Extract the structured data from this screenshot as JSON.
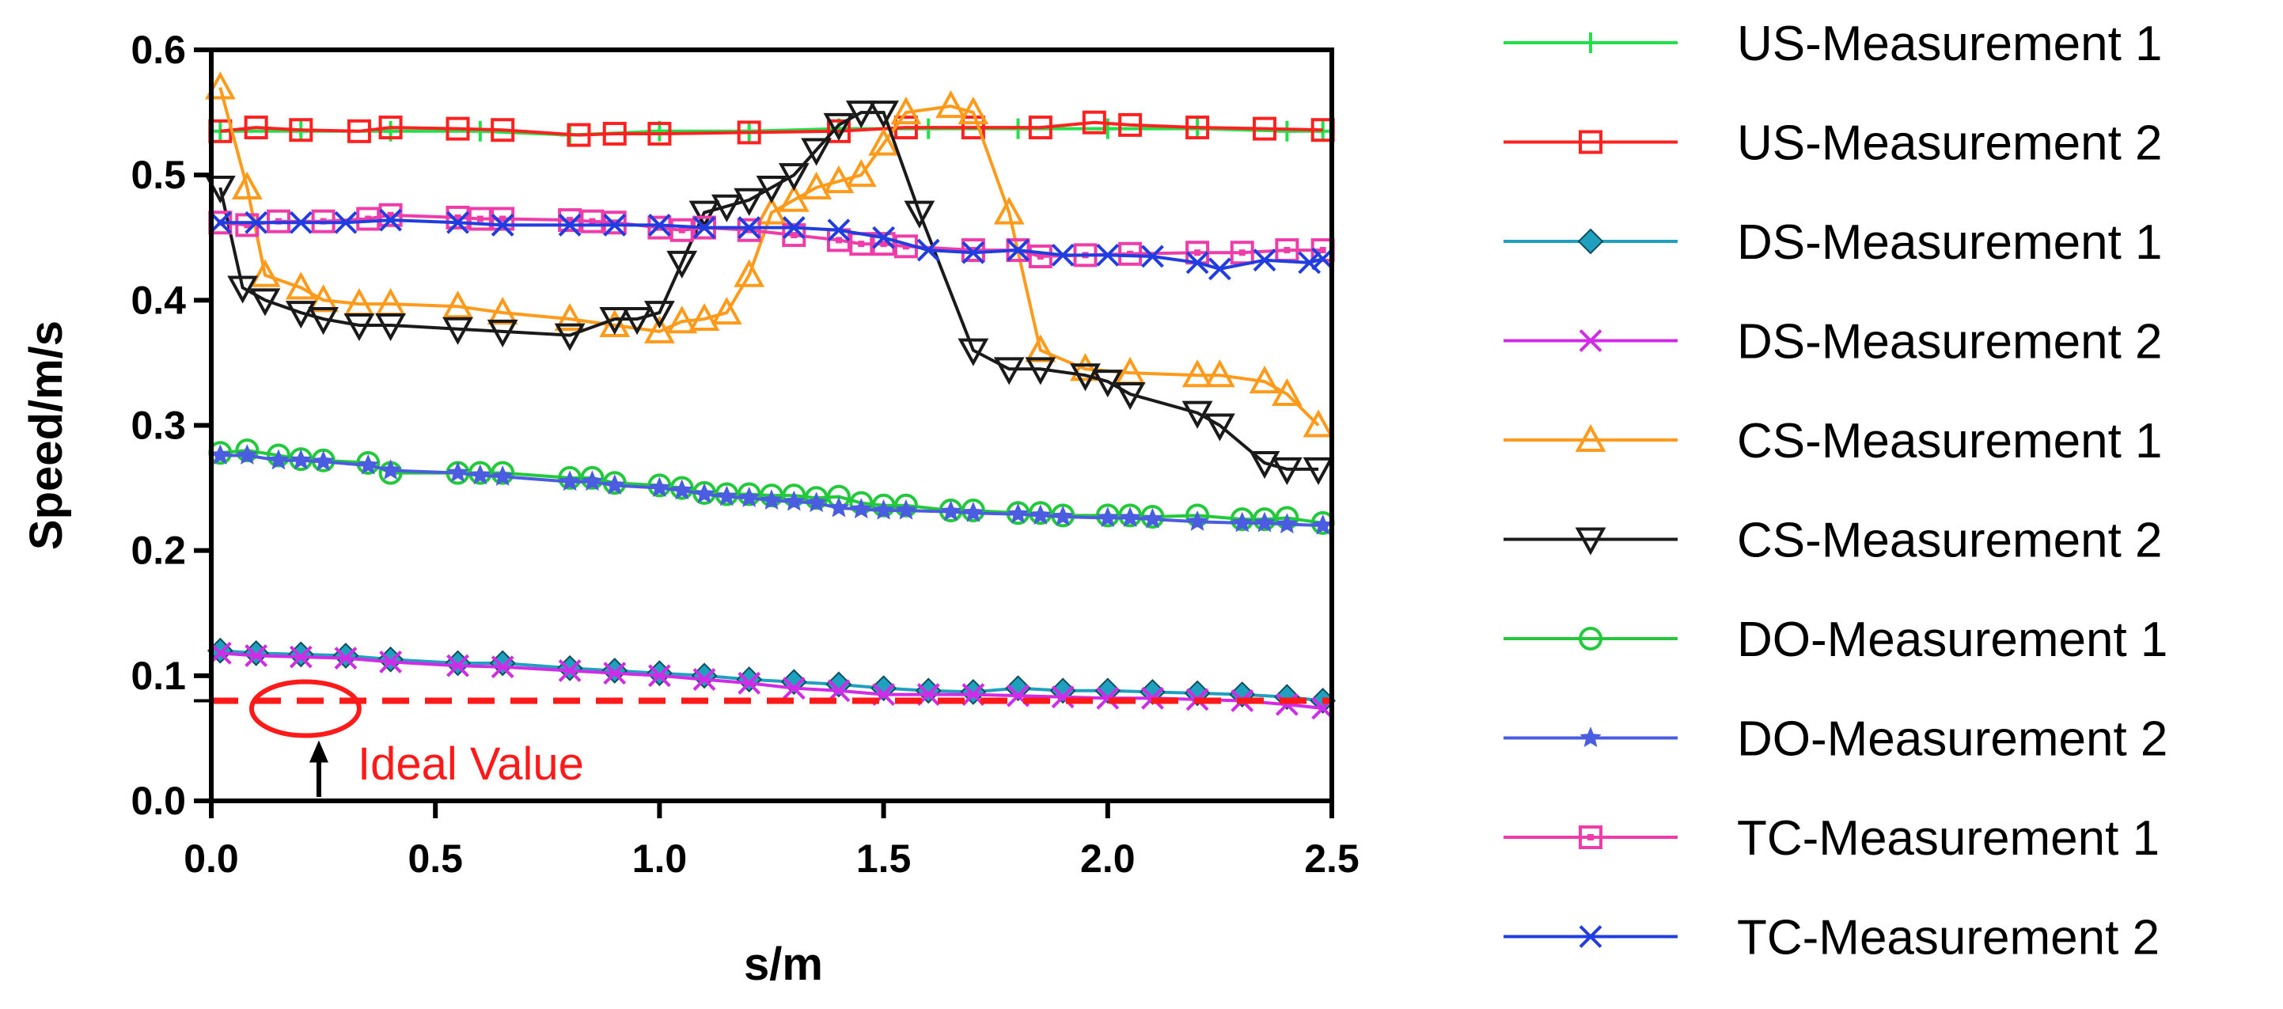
{
  "chart_data": {
    "type": "line",
    "title": "",
    "xlabel": "s/m",
    "ylabel": "Speed/m/s",
    "xlim": [
      0,
      2.5
    ],
    "ylim": [
      0,
      0.6
    ],
    "x_ticks": [
      "0.0",
      "0.5",
      "1.0",
      "1.5",
      "2.0",
      "2.5"
    ],
    "y_ticks": [
      "0.0",
      "0.1",
      "0.2",
      "0.3",
      "0.4",
      "0.5",
      "0.6"
    ],
    "grid": false,
    "legend_position": "right",
    "ideal_value": 0.08,
    "annotation": {
      "text": "Ideal Value",
      "color": "#ff1a1a"
    },
    "series": [
      {
        "name": "US-Measurement 1",
        "color": "#22e04a",
        "marker": "plus",
        "x": [
          0.02,
          0.2,
          0.4,
          0.6,
          0.8,
          1.0,
          1.2,
          1.4,
          1.6,
          1.8,
          2.0,
          2.2,
          2.4,
          2.48
        ],
        "y": [
          0.535,
          0.535,
          0.535,
          0.535,
          0.532,
          0.535,
          0.535,
          0.537,
          0.537,
          0.537,
          0.537,
          0.537,
          0.535,
          0.535
        ]
      },
      {
        "name": "US-Measurement 2",
        "color": "#ff2020",
        "marker": "square",
        "x": [
          0.02,
          0.1,
          0.2,
          0.33,
          0.4,
          0.55,
          0.65,
          0.82,
          0.9,
          1.0,
          1.2,
          1.4,
          1.55,
          1.7,
          1.85,
          1.97,
          2.05,
          2.2,
          2.35,
          2.48
        ],
        "y": [
          0.535,
          0.538,
          0.536,
          0.535,
          0.538,
          0.537,
          0.536,
          0.532,
          0.533,
          0.533,
          0.534,
          0.535,
          0.538,
          0.538,
          0.538,
          0.542,
          0.54,
          0.538,
          0.537,
          0.536
        ]
      },
      {
        "name": "DS-Measurement 1",
        "color": "#1fa0bf",
        "marker": "diamond",
        "x": [
          0.02,
          0.1,
          0.2,
          0.3,
          0.4,
          0.55,
          0.65,
          0.8,
          0.9,
          1.0,
          1.1,
          1.2,
          1.3,
          1.4,
          1.5,
          1.6,
          1.7,
          1.8,
          1.9,
          2.0,
          2.1,
          2.2,
          2.3,
          2.4,
          2.48
        ],
        "y": [
          0.12,
          0.118,
          0.117,
          0.116,
          0.113,
          0.11,
          0.11,
          0.106,
          0.104,
          0.102,
          0.1,
          0.097,
          0.095,
          0.093,
          0.09,
          0.088,
          0.087,
          0.09,
          0.088,
          0.088,
          0.087,
          0.086,
          0.085,
          0.083,
          0.08
        ]
      },
      {
        "name": "DS-Measurement 2",
        "color": "#d12be8",
        "marker": "x",
        "x": [
          0.02,
          0.1,
          0.2,
          0.3,
          0.4,
          0.55,
          0.65,
          0.8,
          0.9,
          1.0,
          1.1,
          1.2,
          1.3,
          1.4,
          1.5,
          1.6,
          1.7,
          1.8,
          1.9,
          2.0,
          2.1,
          2.2,
          2.3,
          2.4,
          2.48
        ],
        "y": [
          0.118,
          0.116,
          0.115,
          0.114,
          0.111,
          0.108,
          0.107,
          0.104,
          0.102,
          0.1,
          0.097,
          0.094,
          0.09,
          0.088,
          0.085,
          0.085,
          0.085,
          0.084,
          0.083,
          0.082,
          0.082,
          0.081,
          0.08,
          0.077,
          0.074
        ]
      },
      {
        "name": "CS-Measurement 1",
        "color": "#ff9a1a",
        "marker": "triangle-up",
        "x": [
          0.02,
          0.08,
          0.12,
          0.2,
          0.25,
          0.33,
          0.4,
          0.55,
          0.65,
          0.8,
          0.9,
          1.0,
          1.05,
          1.1,
          1.15,
          1.2,
          1.25,
          1.3,
          1.35,
          1.4,
          1.45,
          1.5,
          1.55,
          1.65,
          1.7,
          1.78,
          1.85,
          1.95,
          2.05,
          2.2,
          2.25,
          2.35,
          2.4,
          2.47
        ],
        "y": [
          0.57,
          0.49,
          0.42,
          0.41,
          0.4,
          0.397,
          0.397,
          0.395,
          0.39,
          0.385,
          0.38,
          0.375,
          0.383,
          0.385,
          0.39,
          0.42,
          0.47,
          0.48,
          0.49,
          0.495,
          0.5,
          0.525,
          0.55,
          0.555,
          0.55,
          0.47,
          0.36,
          0.345,
          0.342,
          0.34,
          0.34,
          0.335,
          0.325,
          0.3
        ]
      },
      {
        "name": "CS-Measurement 2",
        "color": "#1a1a1a",
        "marker": "triangle-down",
        "x": [
          0.02,
          0.07,
          0.12,
          0.2,
          0.25,
          0.33,
          0.4,
          0.55,
          0.65,
          0.8,
          0.9,
          0.95,
          1.0,
          1.05,
          1.1,
          1.15,
          1.2,
          1.25,
          1.3,
          1.35,
          1.4,
          1.45,
          1.5,
          1.58,
          1.7,
          1.78,
          1.85,
          1.95,
          2.0,
          2.05,
          2.2,
          2.25,
          2.35,
          2.4,
          2.47
        ],
        "y": [
          0.49,
          0.41,
          0.4,
          0.39,
          0.385,
          0.38,
          0.38,
          0.377,
          0.375,
          0.372,
          0.385,
          0.385,
          0.39,
          0.43,
          0.47,
          0.475,
          0.48,
          0.49,
          0.5,
          0.52,
          0.54,
          0.55,
          0.55,
          0.47,
          0.36,
          0.345,
          0.345,
          0.34,
          0.335,
          0.325,
          0.31,
          0.3,
          0.27,
          0.265,
          0.265
        ]
      },
      {
        "name": "DO-Measurement 1",
        "color": "#22c93a",
        "marker": "circle",
        "x": [
          0.02,
          0.08,
          0.15,
          0.2,
          0.25,
          0.35,
          0.4,
          0.55,
          0.6,
          0.65,
          0.8,
          0.85,
          0.9,
          1.0,
          1.05,
          1.1,
          1.15,
          1.2,
          1.25,
          1.3,
          1.35,
          1.4,
          1.45,
          1.5,
          1.55,
          1.65,
          1.7,
          1.8,
          1.85,
          1.9,
          2.0,
          2.05,
          2.1,
          2.2,
          2.3,
          2.35,
          2.4,
          2.48
        ],
        "y": [
          0.278,
          0.28,
          0.276,
          0.273,
          0.272,
          0.27,
          0.262,
          0.262,
          0.262,
          0.262,
          0.258,
          0.258,
          0.254,
          0.252,
          0.25,
          0.246,
          0.245,
          0.245,
          0.244,
          0.244,
          0.242,
          0.243,
          0.238,
          0.236,
          0.236,
          0.232,
          0.232,
          0.23,
          0.23,
          0.228,
          0.228,
          0.228,
          0.227,
          0.228,
          0.225,
          0.225,
          0.226,
          0.222
        ]
      },
      {
        "name": "DO-Measurement 2",
        "color": "#4a5ce0",
        "marker": "star",
        "x": [
          0.02,
          0.08,
          0.15,
          0.2,
          0.25,
          0.35,
          0.4,
          0.55,
          0.6,
          0.65,
          0.8,
          0.85,
          0.9,
          1.0,
          1.05,
          1.1,
          1.15,
          1.2,
          1.25,
          1.3,
          1.35,
          1.4,
          1.45,
          1.5,
          1.55,
          1.65,
          1.7,
          1.8,
          1.85,
          1.9,
          2.0,
          2.05,
          2.1,
          2.2,
          2.3,
          2.35,
          2.4,
          2.48
        ],
        "y": [
          0.276,
          0.276,
          0.272,
          0.272,
          0.271,
          0.268,
          0.264,
          0.262,
          0.26,
          0.259,
          0.255,
          0.255,
          0.252,
          0.25,
          0.248,
          0.245,
          0.243,
          0.242,
          0.24,
          0.239,
          0.238,
          0.234,
          0.233,
          0.232,
          0.232,
          0.231,
          0.23,
          0.229,
          0.228,
          0.227,
          0.226,
          0.226,
          0.225,
          0.223,
          0.222,
          0.222,
          0.221,
          0.22
        ]
      },
      {
        "name": "TC-Measurement 1",
        "color": "#f03ca8",
        "marker": "square-dot",
        "x": [
          0.02,
          0.08,
          0.15,
          0.25,
          0.35,
          0.4,
          0.55,
          0.6,
          0.65,
          0.8,
          0.85,
          0.9,
          1.0,
          1.05,
          1.1,
          1.2,
          1.3,
          1.4,
          1.45,
          1.5,
          1.55,
          1.7,
          1.8,
          1.85,
          1.95,
          2.05,
          2.2,
          2.3,
          2.4,
          2.48
        ],
        "y": [
          0.462,
          0.46,
          0.463,
          0.463,
          0.465,
          0.468,
          0.466,
          0.465,
          0.465,
          0.464,
          0.463,
          0.462,
          0.458,
          0.456,
          0.458,
          0.456,
          0.452,
          0.448,
          0.445,
          0.445,
          0.443,
          0.44,
          0.44,
          0.435,
          0.436,
          0.437,
          0.438,
          0.438,
          0.44,
          0.44
        ]
      },
      {
        "name": "TC-Measurement 2",
        "color": "#1f3de0",
        "marker": "x",
        "x": [
          0.02,
          0.1,
          0.2,
          0.3,
          0.4,
          0.55,
          0.65,
          0.8,
          0.9,
          1.0,
          1.1,
          1.2,
          1.3,
          1.4,
          1.5,
          1.6,
          1.7,
          1.8,
          1.9,
          2.0,
          2.1,
          2.2,
          2.25,
          2.35,
          2.45,
          2.48
        ],
        "y": [
          0.462,
          0.462,
          0.462,
          0.462,
          0.464,
          0.462,
          0.46,
          0.46,
          0.46,
          0.46,
          0.458,
          0.458,
          0.458,
          0.456,
          0.45,
          0.44,
          0.438,
          0.44,
          0.436,
          0.436,
          0.435,
          0.43,
          0.425,
          0.432,
          0.43,
          0.433
        ]
      }
    ]
  }
}
